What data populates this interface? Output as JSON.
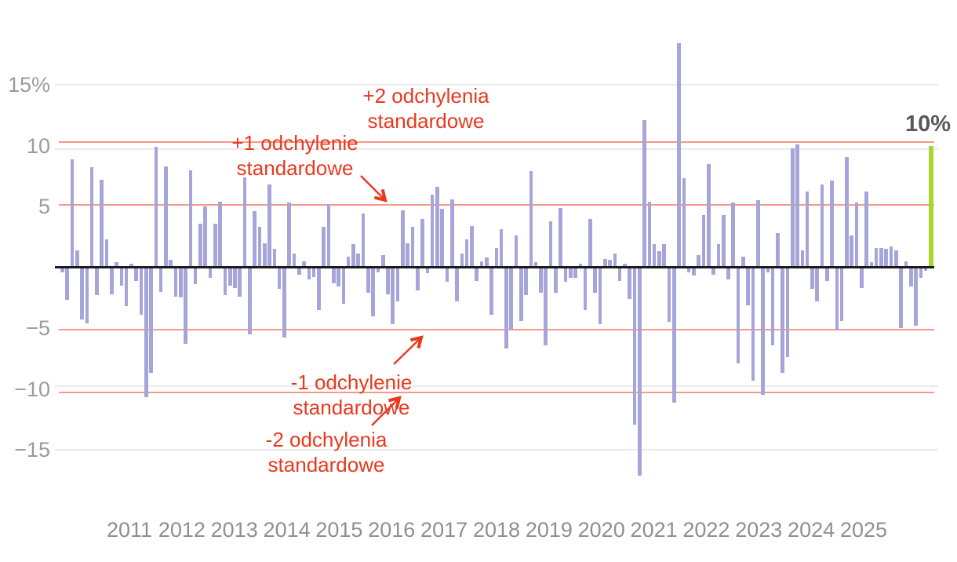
{
  "page": {
    "background": "#ffffff"
  },
  "chart_data": {
    "type": "bar",
    "title": "",
    "series_unit": "%",
    "x_tick_labels": [
      "2011",
      "2012",
      "2013",
      "2014",
      "2015",
      "2016",
      "2017",
      "2018",
      "2019",
      "2020",
      "2021",
      "2022",
      "2023",
      "2024",
      "2025"
    ],
    "y_ticks": [
      {
        "label": "15%",
        "value": 15
      },
      {
        "label": "10",
        "value": 10
      },
      {
        "label": "5",
        "value": 5
      },
      {
        "label": "−5",
        "value": -5
      },
      {
        "label": "−10",
        "value": -10
      },
      {
        "label": "−15",
        "value": -15
      }
    ],
    "y_gridline_values": [
      15,
      10,
      -10,
      -15
    ],
    "ylim": [
      -18.5,
      19.5
    ],
    "grid": true,
    "legend": false,
    "zero_line_value": 0,
    "reference_lines": [
      {
        "label": "+2 odchylenia standardowe",
        "value": 10.3
      },
      {
        "label": "+1 odchylenie standardowe",
        "value": 5.1
      },
      {
        "label": "-1 odchylenie standardowe",
        "value": -5.1
      },
      {
        "label": "-2 odchylenia standardowe",
        "value": -10.3
      }
    ],
    "annotations": {
      "plus2": {
        "line1": "+2 odchylenia",
        "line2": "standardowe"
      },
      "plus1": {
        "line1": "+1 odchylenie",
        "line2": "standardowe"
      },
      "minus1": {
        "line1": "-1 odchylenie",
        "line2": "standardowe"
      },
      "minus2": {
        "line1": "-2 odchylenia",
        "line2": "standardowe"
      }
    },
    "highlight_bar": {
      "label": "10%",
      "value": 10
    },
    "monthly_values": [
      -0.4,
      -2.7,
      8.9,
      1.4,
      -4.3,
      -4.6,
      8.2,
      -2.3,
      7.2,
      2.3,
      -2.2,
      0.4,
      -1.5,
      -3.2,
      0.3,
      -1.1,
      -3.9,
      -10.7,
      -8.7,
      9.9,
      -2.0,
      8.3,
      0.6,
      -2.4,
      -2.5,
      -6.3,
      8.0,
      -1.4,
      3.6,
      5.0,
      -0.9,
      3.6,
      5.4,
      -2.3,
      -1.5,
      -1.7,
      -2.4,
      7.4,
      -5.5,
      4.6,
      3.3,
      2.0,
      6.8,
      1.5,
      -1.8,
      -5.8,
      5.3,
      1.1,
      -0.6,
      0.5,
      -1.0,
      -0.8,
      -3.5,
      3.3,
      5.2,
      -1.3,
      -1.6,
      -3.0,
      0.9,
      1.9,
      1.1,
      4.4,
      -2.1,
      -4.0,
      -0.4,
      1.0,
      -2.2,
      -4.7,
      -2.8,
      4.7,
      2.0,
      3.3,
      -1.9,
      4.0,
      -0.5,
      6.0,
      6.6,
      4.8,
      -1.2,
      5.6,
      -2.8,
      1.1,
      2.3,
      3.4,
      -1.1,
      0.5,
      0.8,
      -3.9,
      1.6,
      3.1,
      -6.7,
      -5.1,
      2.6,
      -4.4,
      -2.3,
      7.9,
      0.4,
      -2.1,
      -6.4,
      3.8,
      -2.1,
      4.9,
      -1.2,
      -0.9,
      -0.9,
      0.3,
      -3.5,
      4.0,
      -2.1,
      -4.7,
      0.7,
      0.6,
      1.1,
      -1.1,
      0.3,
      -2.6,
      -12.9,
      -17.1,
      12.1,
      5.4,
      1.9,
      1.3,
      1.9,
      -4.5,
      -11.1,
      18.4,
      7.3,
      -0.4,
      -0.7,
      1.0,
      4.3,
      8.5,
      -0.6,
      1.9,
      4.3,
      -1.0,
      5.3,
      -7.9,
      0.9,
      -3.1,
      -9.3,
      5.5,
      -10.5,
      -0.4,
      -6.4,
      2.8,
      -8.7,
      -7.4,
      9.8,
      10.1,
      1.4,
      6.2,
      -1.8,
      -2.8,
      6.8,
      -1.1,
      7.1,
      -5.2,
      -4.4,
      9.1,
      2.6,
      5.3,
      -1.7,
      6.2,
      0.4,
      1.6,
      1.6,
      1.5,
      1.7,
      1.4,
      -5.0,
      0.5,
      -1.6,
      -4.8,
      -0.9,
      -0.3
    ],
    "colors": {
      "bar": "#a5a5da",
      "highlight_bar": "#a8d62f",
      "reference_line": "#f4907e",
      "annotation_text": "#e8391f",
      "zero_line": "#1c1c1c",
      "gridline": "#ebebeb",
      "axis_label": "#8f8f8f",
      "highlight_label": "#58585b"
    }
  }
}
